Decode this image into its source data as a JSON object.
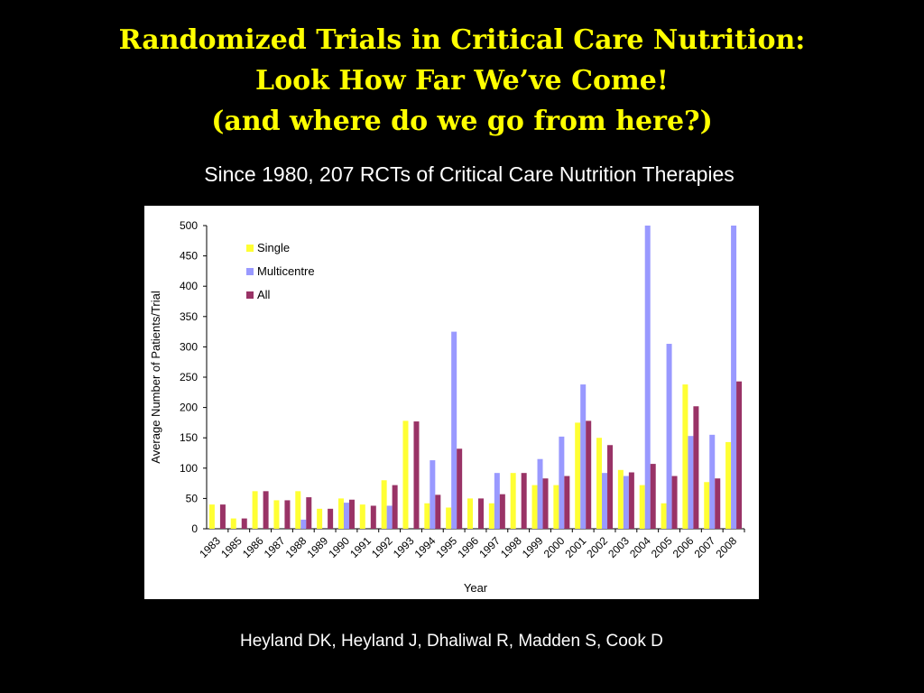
{
  "slide": {
    "title_lines": [
      "Randomized Trials in Critical Care Nutrition:",
      "Look How Far We’ve Come!",
      "(and where do we go from here?)"
    ],
    "subtitle": "Since 1980, 207 RCTs of Critical Care Nutrition Therapies",
    "citation": "Heyland DK, Heyland J, Dhaliwal R, Madden S, Cook D",
    "title_color": "#ffff00",
    "background_color": "#000000"
  },
  "chart_data": {
    "type": "bar",
    "title": "",
    "xlabel": "Year",
    "ylabel": "Average Number of Patients/Trial",
    "ylim": [
      0,
      500
    ],
    "yticks": [
      0,
      50,
      100,
      150,
      200,
      250,
      300,
      350,
      400,
      450,
      500
    ],
    "grid": false,
    "legend_position": "top-left",
    "categories": [
      "1983",
      "1985",
      "1986",
      "1987",
      "1988",
      "1989",
      "1990",
      "1991",
      "1992",
      "1993",
      "1994",
      "1995",
      "1996",
      "1997",
      "1998",
      "1999",
      "2000",
      "2001",
      "2002",
      "2003",
      "2004",
      "2005",
      "2006",
      "2007",
      "2008"
    ],
    "series": [
      {
        "name": "Single",
        "color": "#ffff33",
        "values": [
          40,
          17,
          62,
          47,
          62,
          33,
          50,
          40,
          80,
          178,
          42,
          35,
          50,
          42,
          92,
          72,
          72,
          175,
          150,
          97,
          72,
          42,
          238,
          77,
          143
        ]
      },
      {
        "name": "Multicentre",
        "color": "#9999ff",
        "values": [
          0,
          0,
          0,
          0,
          15,
          0,
          43,
          0,
          38,
          0,
          113,
          325,
          0,
          92,
          0,
          115,
          152,
          238,
          92,
          87,
          500,
          305,
          153,
          155,
          500
        ]
      },
      {
        "name": "All",
        "color": "#993366",
        "values": [
          40,
          17,
          62,
          47,
          52,
          33,
          48,
          38,
          72,
          177,
          56,
          132,
          50,
          57,
          92,
          83,
          87,
          178,
          138,
          93,
          107,
          87,
          202,
          83,
          243
        ]
      }
    ]
  }
}
